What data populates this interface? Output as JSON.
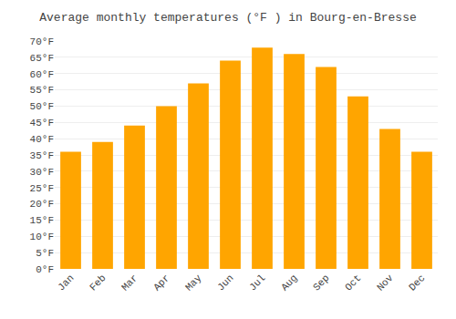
{
  "chart_data": {
    "type": "bar",
    "title": "Average monthly temperatures (°F ) in Bourg-en-Bresse",
    "categories": [
      "Jan",
      "Feb",
      "Mar",
      "Apr",
      "May",
      "Jun",
      "Jul",
      "Aug",
      "Sep",
      "Oct",
      "Nov",
      "Dec"
    ],
    "values": [
      36,
      39,
      44,
      50,
      57,
      64,
      68,
      66,
      62,
      53,
      43,
      36
    ],
    "color": "#FFA500",
    "ylim": [
      0,
      70
    ],
    "yticks": [
      {
        "value": 0,
        "label": "0°F"
      },
      {
        "value": 5,
        "label": "5°F"
      },
      {
        "value": 10,
        "label": "10°F"
      },
      {
        "value": 15,
        "label": "15°F"
      },
      {
        "value": 20,
        "label": "20°F"
      },
      {
        "value": 25,
        "label": "25°F"
      },
      {
        "value": 30,
        "label": "30°F"
      },
      {
        "value": 35,
        "label": "35°F"
      },
      {
        "value": 40,
        "label": "40°F"
      },
      {
        "value": 45,
        "label": "45°F"
      },
      {
        "value": 50,
        "label": "50°F"
      },
      {
        "value": 55,
        "label": "55°F"
      },
      {
        "value": 60,
        "label": "60°F"
      },
      {
        "value": 65,
        "label": "65°F"
      },
      {
        "value": 70,
        "label": "70°F"
      }
    ],
    "grid": true
  }
}
